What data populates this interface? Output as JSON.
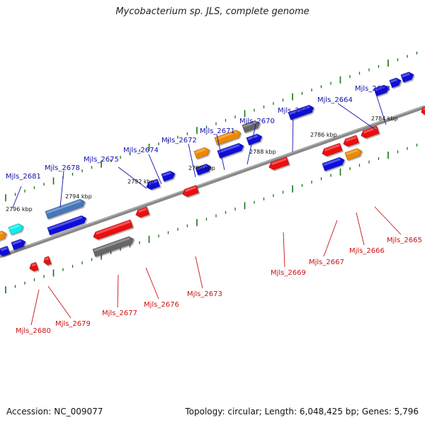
{
  "title": "Mycobacterium sp. JLS, complete genome",
  "footer": {
    "accession": "Accession: NC_009077",
    "topology": "Topology: circular; Length: 6,048,425 bp; Genes: 5,796"
  },
  "colors": {
    "red": "#ee1111",
    "blue": "#1111dd",
    "orange": "#ee8800",
    "grey": "#666666",
    "cyan": "#11eeee",
    "steel": "#4477bb",
    "tick": "#117711",
    "backbone": "#888888",
    "label_top": "#1111aa",
    "label_bottom": "#cc1111"
  },
  "ruler_labels": [
    "2796 kbp",
    "2794 kbp",
    "2792 kbp",
    "2790 kbp",
    "2788 kbp",
    "2786 kbp",
    "2784 kbp"
  ],
  "gene_labels_top": [
    "Mjls_2681",
    "Mjls_2678",
    "Mjls_2675",
    "Mjls_2674",
    "Mjls_2672",
    "Mjls_2671",
    "Mjls_2670",
    "Mjls_2668",
    "Mjls_2664",
    "Mjls_2663"
  ],
  "gene_labels_bottom": [
    "Mjls_2680",
    "Mjls_2679",
    "Mjls_2677",
    "Mjls_2676",
    "Mjls_2673",
    "Mjls_2669",
    "Mjls_2667",
    "Mjls_2666",
    "Mjls_2665"
  ]
}
